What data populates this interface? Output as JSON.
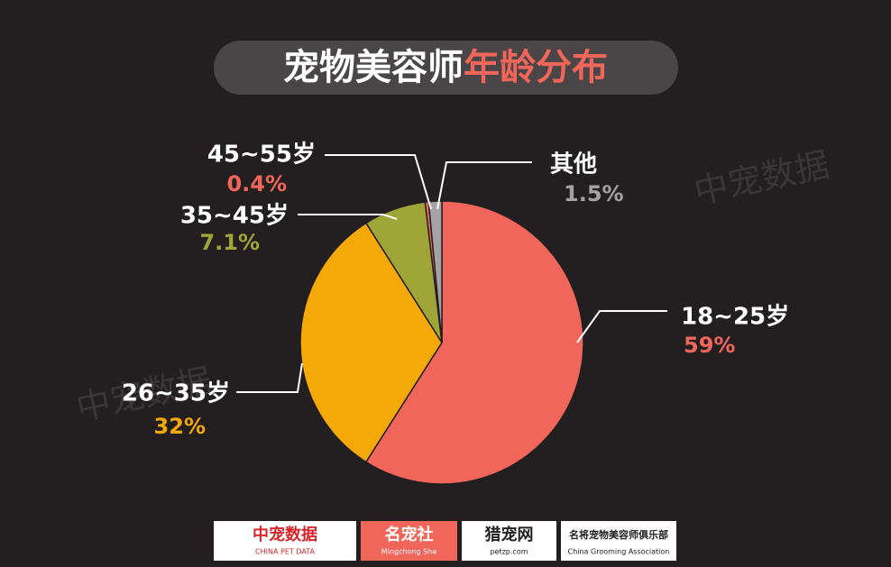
{
  "chart_data": {
    "type": "pie",
    "title": [
      "宠物美容师",
      "年龄分布"
    ],
    "categories": [
      "18~25岁",
      "26~35岁",
      "35~45岁",
      "45~55岁",
      "其他"
    ],
    "values": [
      59,
      32,
      7.1,
      0.4,
      1.5
    ],
    "value_labels": [
      "59%",
      "32%",
      "7.1%",
      "0.4%",
      "1.5%"
    ],
    "colors": [
      "#f0665a",
      "#f4a909",
      "#9fa536",
      "#f0665a",
      "#a3a3a3"
    ],
    "watermark": "中宠数据",
    "footer_logos": [
      {
        "name": "中宠数据",
        "sub": "CHINA PET DATA"
      },
      {
        "name": "名宠社",
        "sub": "Mingchong She"
      },
      {
        "name": "猎宠网",
        "sub": "petzp.com"
      },
      {
        "name": "名将宠物美容师俱乐部",
        "sub": "China Grooming Association"
      }
    ]
  }
}
